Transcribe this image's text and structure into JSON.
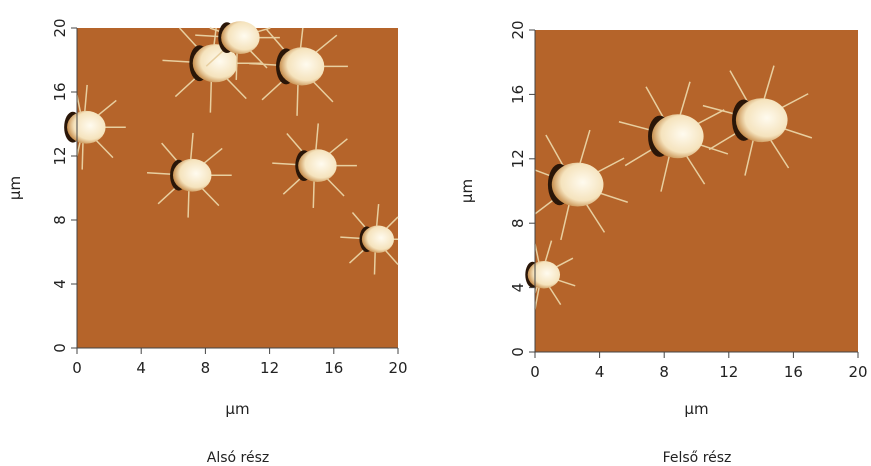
{
  "panels": [
    {
      "caption": "Alsó rész",
      "xlabel": "µm",
      "ylabel": "µm",
      "xlim": [
        0,
        20
      ],
      "ylim": [
        0,
        20
      ],
      "xticks": [
        0,
        4,
        8,
        12,
        16,
        20
      ],
      "yticks": [
        0,
        4,
        8,
        12,
        16,
        20
      ]
    },
    {
      "caption": "Felső rész",
      "xlabel": "µm",
      "ylabel": "µm",
      "xlim": [
        0,
        20
      ],
      "ylim": [
        0,
        20
      ],
      "xticks": [
        0,
        4,
        8,
        12,
        16,
        20
      ],
      "yticks": [
        0,
        4,
        8,
        12,
        16,
        20
      ]
    }
  ]
}
